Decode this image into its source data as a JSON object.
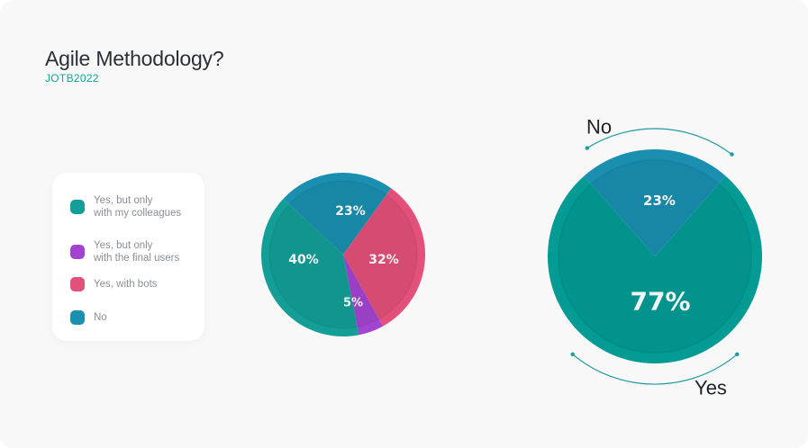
{
  "header": {
    "title": "Agile Methodology?",
    "subtitle": "JOTB2022"
  },
  "legend": {
    "items": [
      {
        "label": "Yes, but only\nwith my colleagues",
        "color": "#139f97"
      },
      {
        "label": "Yes, but only\nwith the final users",
        "color": "#a344d1"
      },
      {
        "label": "Yes, with bots",
        "color": "#e3507a"
      },
      {
        "label": "No",
        "color": "#1a8fb0"
      }
    ]
  },
  "chart_data": [
    {
      "type": "pie",
      "categories": [
        "Yes, but only with my colleagues",
        "Yes, but only with the final users",
        "Yes, with bots",
        "No"
      ],
      "values": [
        40,
        5,
        32,
        23
      ],
      "data_labels": [
        "40%",
        "5%",
        "32%",
        "23%"
      ],
      "colors": [
        "#139f97",
        "#a344d1",
        "#e3507a",
        "#1a8fb0"
      ]
    },
    {
      "type": "pie",
      "categories": [
        "No",
        "Yes"
      ],
      "values": [
        23,
        77
      ],
      "data_labels": [
        "23%",
        "77%"
      ],
      "category_labels": [
        "No",
        "Yes"
      ],
      "colors": [
        "#1a8fb0",
        "#039b94"
      ]
    }
  ]
}
